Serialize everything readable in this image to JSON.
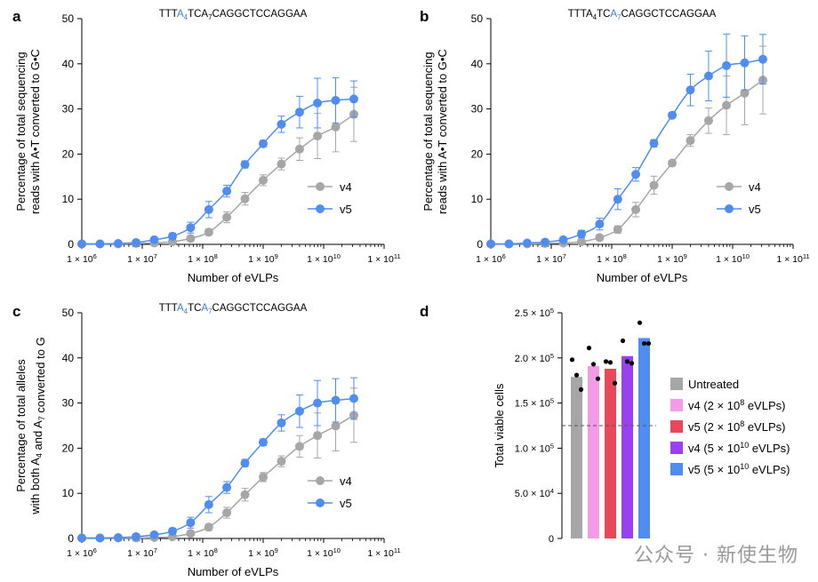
{
  "colors": {
    "v4": "#a6a6a6",
    "v5": "#4f8ef0",
    "highlight": "#3b7de0"
  },
  "panels": [
    {
      "letter": "a",
      "title": [
        {
          "t": "TTT"
        },
        {
          "t": "A",
          "hl": true
        },
        {
          "t": "4",
          "sub": true,
          "hl": true
        },
        {
          "t": "TCA"
        },
        {
          "t": "7",
          "sub": true
        },
        {
          "t": "CAGGCTCCAGGAA"
        }
      ],
      "ylabel": [
        "Percentage of total sequencing",
        "reads with A•T converted to G•C"
      ],
      "xlabel": "Number of eVLPs",
      "legend": [
        "v4",
        "v5"
      ]
    },
    {
      "letter": "b",
      "title": [
        {
          "t": "TTTA"
        },
        {
          "t": "4",
          "sub": true
        },
        {
          "t": "TC"
        },
        {
          "t": "A",
          "hl": true
        },
        {
          "t": "7",
          "sub": true,
          "hl": true
        },
        {
          "t": "CAGGCTCCAGGAA"
        }
      ],
      "ylabel": [
        "Percentage of total sequencing",
        "reads with A•T converted to G•C"
      ],
      "xlabel": "Number of eVLPs",
      "legend": [
        "v4",
        "v5"
      ]
    },
    {
      "letter": "c",
      "title": [
        {
          "t": "TTT"
        },
        {
          "t": "A",
          "hl": true
        },
        {
          "t": "4",
          "sub": true,
          "hl": true
        },
        {
          "t": "TC"
        },
        {
          "t": "A",
          "hl": true
        },
        {
          "t": "7",
          "sub": true,
          "hl": true
        },
        {
          "t": "CAGGCTCCAGGAA"
        }
      ],
      "ylabel": [
        "Percentage of total alleles",
        "with both A4 and A7 converted to G"
      ],
      "xlabel": "Number of eVLPs",
      "legend": [
        "v4",
        "v5"
      ]
    },
    {
      "letter": "d",
      "ylabel": "Total viable cells",
      "legend": [
        "Untreated",
        "v4 (2 × 10^8 eVLPs)",
        "v5 (2 × 10^8 eVLPs)",
        "v4 (5 × 10^10 eVLPs)",
        "v5 (5 × 10^10 eVLPs)"
      ]
    }
  ],
  "chart_data": [
    {
      "type": "line",
      "panel": "a",
      "xscale": "log",
      "xlim": [
        1000000,
        100000000000
      ],
      "ylim": [
        0,
        50
      ],
      "xticks": [
        1000000,
        10000000,
        100000000,
        1000000000,
        10000000000,
        100000000000
      ],
      "yticks": [
        0,
        10,
        20,
        30,
        40,
        50
      ],
      "x": [
        1000000,
        2000000,
        4000000,
        7900000,
        15800000,
        31600000,
        63000000,
        126000000,
        250000000,
        500000000,
        1000000000,
        2000000000,
        4000000000,
        7900000000,
        15800000000,
        31600000000
      ],
      "series": [
        {
          "name": "v4",
          "values": [
            0.1,
            0.1,
            0.1,
            0.2,
            0.3,
            0.6,
            1.3,
            2.7,
            6.0,
            10.1,
            14.2,
            17.8,
            21.1,
            24.0,
            26.0,
            28.8
          ],
          "err": [
            0.1,
            0.1,
            0.1,
            0.1,
            0.2,
            0.3,
            0.5,
            0.7,
            1.2,
            1.4,
            1.2,
            1.3,
            2.5,
            5.0,
            5.5,
            6.0
          ]
        },
        {
          "name": "v5",
          "values": [
            0.1,
            0.1,
            0.2,
            0.4,
            1.0,
            1.8,
            3.7,
            7.7,
            11.8,
            17.7,
            22.3,
            26.6,
            29.3,
            31.3,
            31.9,
            32.2
          ],
          "err": [
            0.1,
            0.1,
            0.1,
            0.2,
            0.4,
            0.7,
            1.2,
            1.8,
            1.3,
            0.8,
            0.7,
            1.8,
            3.5,
            5.5,
            5.0,
            4.0
          ]
        }
      ]
    },
    {
      "type": "line",
      "panel": "b",
      "xscale": "log",
      "xlim": [
        1000000,
        100000000000
      ],
      "ylim": [
        0,
        50
      ],
      "xticks": [
        1000000,
        10000000,
        100000000,
        1000000000,
        10000000000,
        100000000000
      ],
      "yticks": [
        0,
        10,
        20,
        30,
        40,
        50
      ],
      "x": [
        1000000,
        2000000,
        4000000,
        7900000,
        15800000,
        31600000,
        63000000,
        126000000,
        250000000,
        500000000,
        1000000000,
        2000000000,
        4000000000,
        7900000000,
        15800000000,
        31600000000
      ],
      "series": [
        {
          "name": "v4",
          "values": [
            0.1,
            0.1,
            0.1,
            0.2,
            0.3,
            0.6,
            1.5,
            3.3,
            7.7,
            13.1,
            18.0,
            23.0,
            27.4,
            30.8,
            33.5,
            36.4
          ],
          "err": [
            0.1,
            0.1,
            0.1,
            0.1,
            0.2,
            0.3,
            0.6,
            0.8,
            1.6,
            2.0,
            0.6,
            1.3,
            2.8,
            6.5,
            7.0,
            7.5
          ]
        },
        {
          "name": "v5",
          "values": [
            0.1,
            0.1,
            0.3,
            0.5,
            1.0,
            2.3,
            4.5,
            10.0,
            15.5,
            22.4,
            28.6,
            34.2,
            37.3,
            39.6,
            40.2,
            41.0
          ],
          "err": [
            0.1,
            0.1,
            0.1,
            0.2,
            0.5,
            0.8,
            1.3,
            2.3,
            1.5,
            0.8,
            0.6,
            3.5,
            5.5,
            7.0,
            6.0,
            5.5
          ]
        }
      ]
    },
    {
      "type": "line",
      "panel": "c",
      "xscale": "log",
      "xlim": [
        1000000,
        100000000000
      ],
      "ylim": [
        0,
        50
      ],
      "xticks": [
        1000000,
        10000000,
        100000000,
        1000000000,
        10000000000,
        100000000000
      ],
      "yticks": [
        0,
        10,
        20,
        30,
        40,
        50
      ],
      "x": [
        1000000,
        2000000,
        4000000,
        7900000,
        15800000,
        31600000,
        63000000,
        126000000,
        250000000,
        500000000,
        1000000000,
        2000000000,
        4000000000,
        7900000000,
        15800000000,
        31600000000
      ],
      "series": [
        {
          "name": "v4",
          "values": [
            0.1,
            0.1,
            0.1,
            0.1,
            0.2,
            0.4,
            1.1,
            2.5,
            5.7,
            9.7,
            13.6,
            17.1,
            20.4,
            22.8,
            24.9,
            27.3
          ],
          "err": [
            0.1,
            0.1,
            0.1,
            0.1,
            0.2,
            0.3,
            0.5,
            0.7,
            1.2,
            1.4,
            1.0,
            1.2,
            2.4,
            5.0,
            5.5,
            6.0
          ]
        },
        {
          "name": "v5",
          "values": [
            0.1,
            0.1,
            0.2,
            0.4,
            0.8,
            1.6,
            3.5,
            7.5,
            11.3,
            16.7,
            21.3,
            25.6,
            28.2,
            30.0,
            30.6,
            31.0
          ],
          "err": [
            0.1,
            0.1,
            0.1,
            0.2,
            0.4,
            0.7,
            1.2,
            1.8,
            1.3,
            0.8,
            0.7,
            1.8,
            3.6,
            5.0,
            4.8,
            4.6
          ]
        }
      ]
    },
    {
      "type": "bar",
      "panel": "d",
      "categories": [
        "Untreated",
        "v4 (2 × 10^8 eVLPs)",
        "v5 (2 × 10^8 eVLPs)",
        "v4 (5 × 10^10 eVLPs)",
        "v5 (5 × 10^10 eVLPs)"
      ],
      "values": [
        179000,
        191000,
        188000,
        202000,
        222000
      ],
      "points": [
        [
          198000,
          181000,
          165000
        ],
        [
          211000,
          193000,
          177000
        ],
        [
          196000,
          195000,
          172000
        ],
        [
          219000,
          196000,
          194000
        ],
        [
          239000,
          216000,
          216000
        ]
      ],
      "colors": [
        "#a6a6a6",
        "#f39be6",
        "#e8485a",
        "#9b3ff2",
        "#4f8ef0"
      ],
      "reference_line": 125000,
      "ylim": [
        0,
        250000
      ],
      "yticks": [
        0,
        50000,
        100000,
        150000,
        200000,
        250000
      ]
    }
  ],
  "watermark": "公众号 · 新使生物"
}
